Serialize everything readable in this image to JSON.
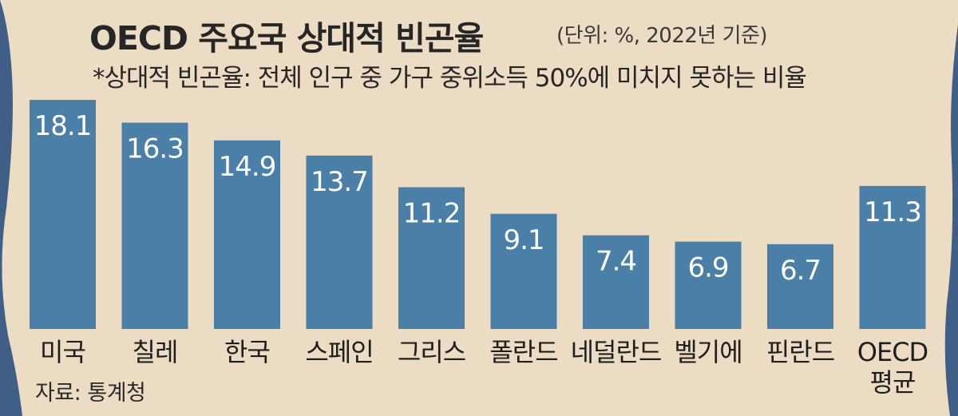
{
  "title": "OECD 주요국 상대적 빈곤율",
  "unit_note": "(단위: %, 2022년 기준)",
  "subtitle": "*상대적 빈곤율: 전체 인구 중 가구 중위소득 50%에 미치지 못하는 비율",
  "source": "자료: 통계청",
  "colors": {
    "bar": "#4a7fa7",
    "paper": "#ecdcc4",
    "background": "#3f5f86",
    "text": "#262626"
  },
  "chart_data": {
    "type": "bar",
    "title": "OECD 주요국 상대적 빈곤율",
    "categories": [
      [
        "미국"
      ],
      [
        "칠레"
      ],
      [
        "한국"
      ],
      [
        "스페인"
      ],
      [
        "그리스"
      ],
      [
        "폴란드"
      ],
      [
        "네덜란드"
      ],
      [
        "벨기에"
      ],
      [
        "핀란드"
      ],
      [
        "OECD",
        "평균"
      ]
    ],
    "values": [
      18.1,
      16.3,
      14.9,
      13.7,
      11.2,
      9.1,
      7.4,
      6.9,
      6.7,
      11.3
    ],
    "value_labels": [
      "18.1",
      "16.3",
      "14.9",
      "13.7",
      "11.2",
      "9.1",
      "7.4",
      "6.9",
      "6.7",
      "11.3"
    ],
    "xlabel": "",
    "ylabel": "",
    "grid": false,
    "legend": "none"
  }
}
